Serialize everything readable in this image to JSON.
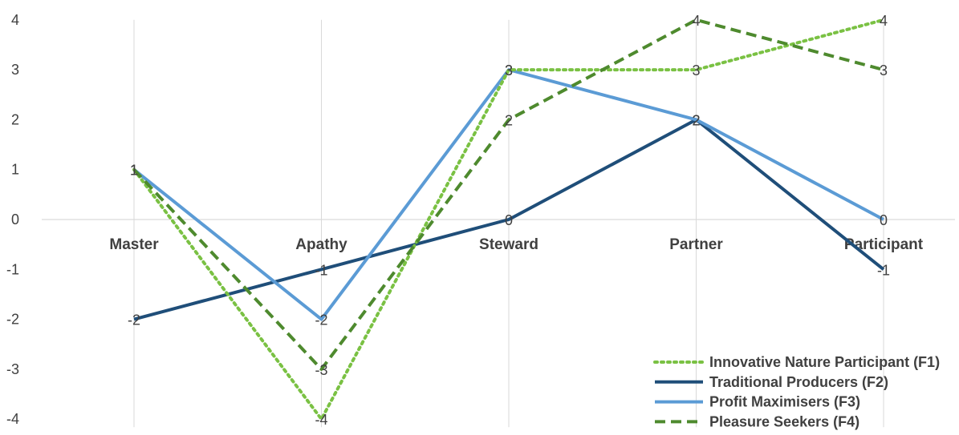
{
  "chart_data": {
    "type": "line",
    "title": "",
    "xlabel": "",
    "ylabel": "",
    "categories": [
      "Master",
      "Apathy",
      "Steward",
      "Partner",
      "Participant"
    ],
    "ylim": [
      -4,
      4
    ],
    "yticks": [
      4,
      3,
      2,
      1,
      0,
      -1,
      -2,
      -3,
      -4
    ],
    "grid": "vertical",
    "legend": "bottom-right",
    "series": [
      {
        "name": "Innovative Nature Participant (F1)",
        "values": [
          1,
          -4,
          3,
          3,
          4
        ],
        "color": "#7ac143",
        "style": "dotted"
      },
      {
        "name": "Traditional Producers (F2)",
        "values": [
          -2,
          -1,
          0,
          2,
          -1
        ],
        "color": "#1f4e79",
        "style": "solid"
      },
      {
        "name": "Profit Maximisers (F3)",
        "values": [
          1,
          -2,
          3,
          2,
          0
        ],
        "color": "#5b9bd5",
        "style": "solid"
      },
      {
        "name": "Pleasure Seekers (F4)",
        "values": [
          1,
          -3,
          2,
          4,
          3
        ],
        "color": "#4e8a2e",
        "style": "dashed"
      }
    ]
  }
}
